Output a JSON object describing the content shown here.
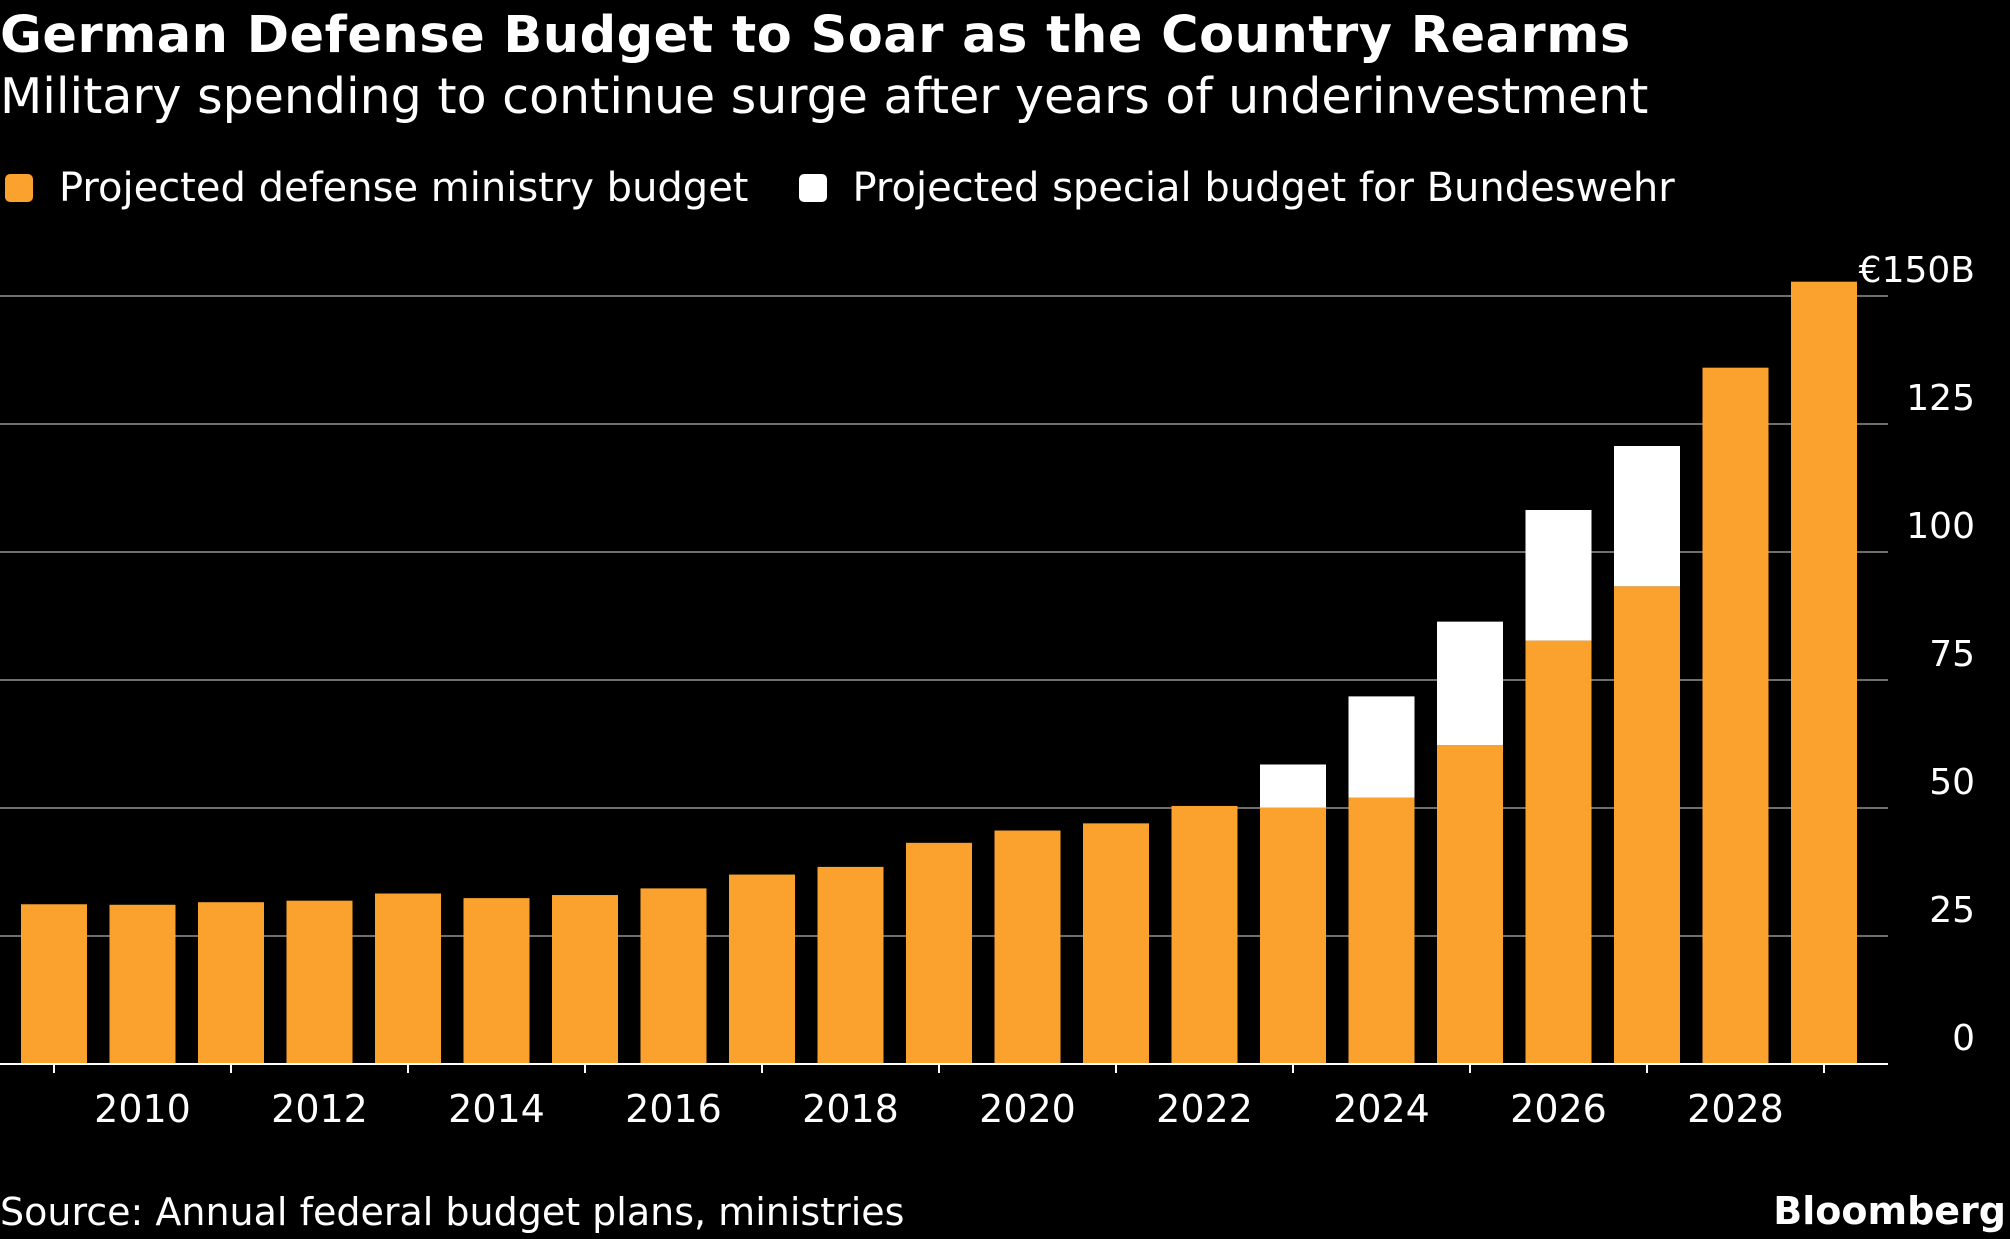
{
  "colors": {
    "background": "#000000",
    "defense": "#FBA22E",
    "special": "#FFFFFF",
    "grid": "#6E6E6E",
    "text": "#FFFFFF"
  },
  "chart_data": {
    "type": "bar",
    "stacked": true,
    "title": "German Defense Budget to Soar as the Country Rearms",
    "subtitle": "Military spending to continue surge after years of underinvestment",
    "legend": [
      "Projected defense ministry budget",
      "Projected special budget for Bundeswehr"
    ],
    "categories": [
      2009,
      2010,
      2011,
      2012,
      2013,
      2014,
      2015,
      2016,
      2017,
      2018,
      2019,
      2020,
      2021,
      2022,
      2023,
      2024,
      2025,
      2026,
      2027,
      2028,
      2029
    ],
    "series": [
      {
        "name": "Projected defense ministry budget",
        "color": "#FBA22E",
        "values": [
          31.2,
          31.1,
          31.6,
          31.9,
          33.3,
          32.4,
          33.0,
          34.3,
          37.0,
          38.5,
          43.2,
          45.6,
          47.0,
          50.4,
          50.1,
          52.0,
          62.3,
          82.7,
          93.3,
          136.0,
          152.8
        ]
      },
      {
        "name": "Projected special budget for Bundeswehr",
        "color": "#FFFFFF",
        "values": [
          0,
          0,
          0,
          0,
          0,
          0,
          0,
          0,
          0,
          0,
          0,
          0,
          0,
          0,
          8.4,
          19.8,
          24.1,
          25.5,
          27.4,
          0,
          0
        ]
      }
    ],
    "x_tick_labels": [
      "2010",
      "2012",
      "2014",
      "2016",
      "2018",
      "2020",
      "2022",
      "2024",
      "2026",
      "2028"
    ],
    "y_ticks": [
      0,
      25,
      50,
      75,
      100,
      125,
      150
    ],
    "y_tick_labels": [
      "0",
      "25",
      "50",
      "75",
      "100",
      "125",
      "€150B"
    ],
    "ylim": [
      0,
      150
    ],
    "xlabel": "",
    "ylabel": "",
    "grid": true,
    "legend_position": "top-left"
  },
  "footer": {
    "source": "Source: Annual federal budget plans, ministries",
    "brand": "Bloomberg"
  }
}
